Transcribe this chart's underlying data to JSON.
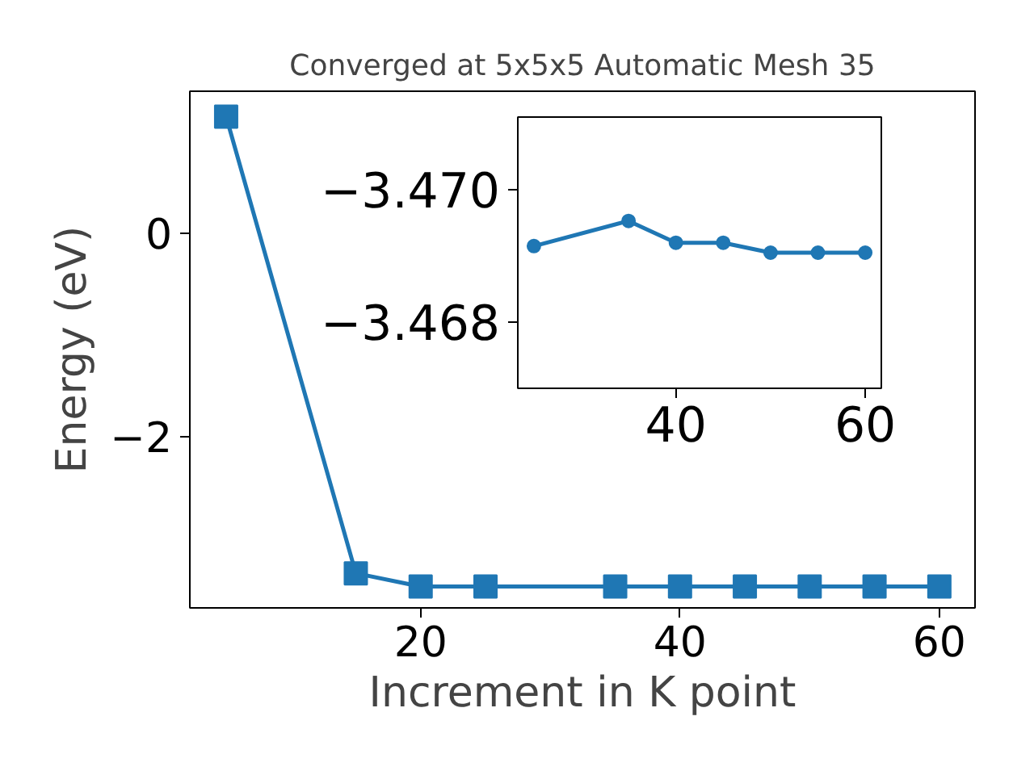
{
  "chart_data": [
    {
      "type": "line",
      "title": "Converged at 5x5x5 Automatic Mesh 35",
      "xlabel": "Increment in K point",
      "ylabel": "Energy (eV)",
      "x": [
        5,
        15,
        20,
        25,
        35,
        40,
        45,
        50,
        55,
        60
      ],
      "series": [
        {
          "color": "#1f77b4",
          "values": [
            1.15,
            -3.34,
            -3.47,
            -3.47,
            -3.47,
            -3.47,
            -3.47,
            -3.47,
            -3.47,
            -3.47
          ]
        }
      ],
      "xlim": [
        2.2,
        62.75
      ],
      "ylim": [
        -3.68,
        1.4
      ],
      "xticks": [
        20,
        40,
        60
      ],
      "yticks": [
        0,
        {
          "value": -2,
          "label": "−2"
        }
      ],
      "marker": "square",
      "line_style": "solid",
      "grid": false
    },
    {
      "type": "line",
      "x": [
        25,
        35,
        40,
        45,
        50,
        55,
        60
      ],
      "series": [
        {
          "color": "#1f77b4",
          "values": [
            -3.46915,
            -3.46953,
            -3.4692,
            -3.4692,
            -3.46905,
            -3.46905,
            -3.46905
          ]
        }
      ],
      "xlim": [
        23.3,
        61.7
      ],
      "ylim": [
        -3.467,
        -3.4711
      ],
      "xticks": [
        40,
        60
      ],
      "yticks": [
        {
          "value": -3.47,
          "label": "−3.470"
        },
        {
          "value": -3.468,
          "label": "−3.468"
        }
      ],
      "marker": "circle",
      "line_style": "solid",
      "grid": false
    }
  ]
}
